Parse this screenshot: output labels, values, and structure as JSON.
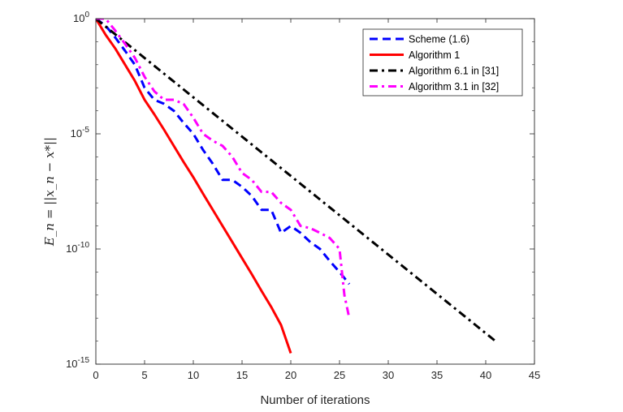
{
  "chart_data": {
    "type": "line",
    "yscale": "log",
    "xlabel": "Number of iterations",
    "ylabel": "E_n = ||x_n − x*||",
    "xlim": [
      0,
      45
    ],
    "ylim": [
      1e-15,
      1
    ],
    "xticks": [
      0,
      5,
      10,
      15,
      20,
      25,
      30,
      35,
      40,
      45
    ],
    "yticks": [
      {
        "value": 1,
        "base": "10",
        "exp": "0"
      },
      {
        "value": 1e-05,
        "base": "10",
        "exp": "-5"
      },
      {
        "value": 1e-10,
        "base": "10",
        "exp": "-10"
      },
      {
        "value": 1e-15,
        "base": "10",
        "exp": "-15"
      }
    ],
    "legend_position": "top-right",
    "series": [
      {
        "name": "Scheme (1.6)",
        "color": "#0000ff",
        "dash": "dashed",
        "x": [
          0,
          1,
          2,
          3,
          4,
          5,
          6,
          7,
          8,
          9,
          10,
          11,
          12,
          13,
          14,
          15,
          16,
          17,
          18,
          19,
          20,
          21,
          22,
          23,
          24,
          25,
          26
        ],
        "y": [
          1,
          0.5,
          0.15,
          0.04,
          0.01,
          0.001,
          0.0003,
          0.0002,
          0.0001,
          3e-05,
          1e-05,
          2e-06,
          5e-07,
          1e-07,
          1e-07,
          5e-08,
          2e-08,
          5e-09,
          5e-09,
          5e-10,
          1e-09,
          5e-10,
          2e-10,
          1e-10,
          3e-11,
          1e-11,
          3e-12
        ]
      },
      {
        "name": "Algorithm 1",
        "color": "#ff0000",
        "dash": "solid",
        "x": [
          0,
          1,
          2,
          3,
          4,
          5,
          6,
          7,
          8,
          9,
          10,
          11,
          12,
          13,
          14,
          15,
          16,
          17,
          18,
          19,
          20
        ],
        "y": [
          1,
          0.2,
          0.05,
          0.01,
          0.002,
          0.0003,
          7e-05,
          1.5e-05,
          3e-06,
          6e-07,
          1.3e-07,
          2.5e-08,
          5e-09,
          1e-09,
          2e-10,
          4e-11,
          8e-12,
          1.5e-12,
          3e-13,
          5e-14,
          3e-15
        ]
      },
      {
        "name": "Algorithm 6.1 in [31]",
        "color": "#000000",
        "dash": "dashdot",
        "x": [
          0,
          41
        ],
        "y": [
          1,
          1e-14
        ]
      },
      {
        "name": "Algorithm 3.1 in [32]",
        "color": "#ff00ff",
        "dash": "dashdot",
        "x": [
          0,
          1,
          2,
          3,
          4,
          5,
          6,
          7,
          8,
          9,
          10,
          11,
          12,
          13,
          14,
          15,
          16,
          17,
          18,
          19,
          20,
          21,
          22,
          23,
          24,
          25,
          25.5,
          26
        ],
        "y": [
          1,
          1,
          0.3,
          0.08,
          0.02,
          0.003,
          0.0007,
          0.0003,
          0.0003,
          0.0002,
          5e-05,
          1e-05,
          5e-06,
          3e-06,
          1e-06,
          2e-07,
          1e-07,
          3e-08,
          3e-08,
          1e-08,
          5e-09,
          1e-09,
          8e-10,
          5e-10,
          3e-10,
          1e-10,
          1e-12,
          1e-13
        ]
      }
    ]
  }
}
